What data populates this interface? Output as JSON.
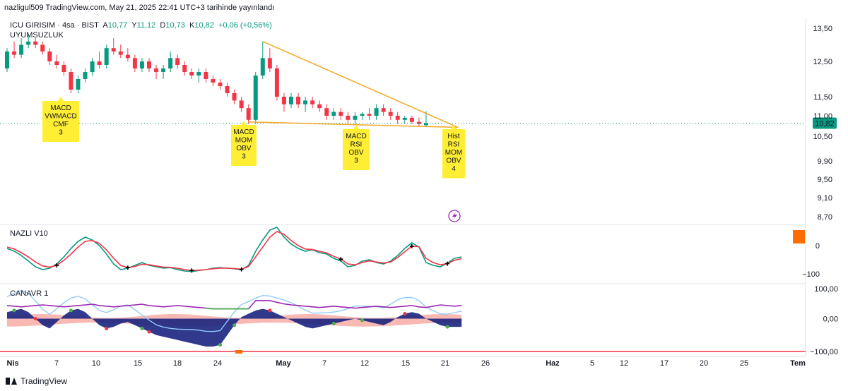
{
  "header": {
    "publish_line": "nazligul509 TradingView.com, May 21, 2025 22:41 UTC+3 tarihinde yayınlandı"
  },
  "legend": {
    "symbol": "ICU GIRISIM · 4sa · BIST",
    "open_label": "A",
    "open": "10,77",
    "high_label": "Y",
    "high": "11,12",
    "low_label": "D",
    "low": "10,73",
    "close_label": "K",
    "close": "10,82",
    "change": "+0,06 (+0,56%)",
    "study": "UYUMSUZLUK"
  },
  "colors": {
    "up": "#089981",
    "down": "#f23645",
    "trendline": "#f5a623",
    "annotation_bg": "#ffee33",
    "price_tag": "#089981",
    "orange_box": "#ff6d00",
    "purple": "#9c27b0",
    "nazli_green": "#089981",
    "nazli_red": "#f23645"
  },
  "chart_data": [
    {
      "type": "candlestick",
      "panel": "price",
      "x_axis": {
        "tick_labels": [
          "Nis",
          "7",
          "10",
          "15",
          "18",
          "24",
          "May",
          "7",
          "12",
          "15",
          "21",
          "26",
          "Haz",
          "5",
          "12",
          "17",
          "20",
          "25",
          "Tem"
        ],
        "bold_ticks": [
          "Nis",
          "May",
          "Haz",
          "Tem"
        ]
      },
      "y_axis": {
        "tick_labels": [
          "13,50",
          "12,50",
          "11,50",
          "11,00",
          "10,50",
          "9,90",
          "9,50",
          "9,10",
          "8,70"
        ],
        "ylim": [
          8.6,
          13.7
        ]
      },
      "last_price": "10,82",
      "candles": [
        [
          12.3,
          12.9,
          12.2,
          12.8
        ],
        [
          12.8,
          13.1,
          12.6,
          12.7
        ],
        [
          12.7,
          13.2,
          12.6,
          13.0
        ],
        [
          13.0,
          13.3,
          12.9,
          13.1
        ],
        [
          13.1,
          13.2,
          12.9,
          13.0
        ],
        [
          13.0,
          13.1,
          12.7,
          12.8
        ],
        [
          12.8,
          12.9,
          12.4,
          12.5
        ],
        [
          12.5,
          12.7,
          12.3,
          12.4
        ],
        [
          12.4,
          12.5,
          12.1,
          12.2
        ],
        [
          12.2,
          12.3,
          11.6,
          11.7
        ],
        [
          11.7,
          12.1,
          11.6,
          12.0
        ],
        [
          12.0,
          12.3,
          11.9,
          12.2
        ],
        [
          12.2,
          12.6,
          12.1,
          12.5
        ],
        [
          12.5,
          12.8,
          12.3,
          12.4
        ],
        [
          12.4,
          13.0,
          12.3,
          12.9
        ],
        [
          12.9,
          13.2,
          12.7,
          12.8
        ],
        [
          12.8,
          13.0,
          12.6,
          12.7
        ],
        [
          12.7,
          12.9,
          12.5,
          12.6
        ],
        [
          12.6,
          12.7,
          12.2,
          12.3
        ],
        [
          12.3,
          12.6,
          12.2,
          12.5
        ],
        [
          12.5,
          12.6,
          12.2,
          12.3
        ],
        [
          12.3,
          12.4,
          12.0,
          12.2
        ],
        [
          12.2,
          12.4,
          12.0,
          12.3
        ],
        [
          12.3,
          12.8,
          12.2,
          12.6
        ],
        [
          12.6,
          12.7,
          12.3,
          12.4
        ],
        [
          12.4,
          12.5,
          12.1,
          12.2
        ],
        [
          12.2,
          12.3,
          12.0,
          12.1
        ],
        [
          12.1,
          12.3,
          11.9,
          12.2
        ],
        [
          12.2,
          12.3,
          11.9,
          12.0
        ],
        [
          12.0,
          12.1,
          11.8,
          11.9
        ],
        [
          11.9,
          12.0,
          11.7,
          11.8
        ],
        [
          11.8,
          11.9,
          11.5,
          11.6
        ],
        [
          11.6,
          11.7,
          11.3,
          11.4
        ],
        [
          11.4,
          11.5,
          11.1,
          11.2
        ],
        [
          11.2,
          11.3,
          10.8,
          10.9
        ],
        [
          10.9,
          12.2,
          10.8,
          12.1
        ],
        [
          12.1,
          13.1,
          12.0,
          12.6
        ],
        [
          12.6,
          12.9,
          12.2,
          12.3
        ],
        [
          12.3,
          12.4,
          11.4,
          11.5
        ],
        [
          11.5,
          11.6,
          11.1,
          11.3
        ],
        [
          11.3,
          11.6,
          11.2,
          11.5
        ],
        [
          11.5,
          11.6,
          11.2,
          11.3
        ],
        [
          11.3,
          11.5,
          11.1,
          11.4
        ],
        [
          11.4,
          11.5,
          11.2,
          11.3
        ],
        [
          11.3,
          11.4,
          11.1,
          11.2
        ],
        [
          11.2,
          11.3,
          10.9,
          11.0
        ],
        [
          11.0,
          11.2,
          10.9,
          11.1
        ],
        [
          11.1,
          11.2,
          10.9,
          11.0
        ],
        [
          11.0,
          11.1,
          10.8,
          10.9
        ],
        [
          10.9,
          11.1,
          10.8,
          11.0
        ],
        [
          11.0,
          11.1,
          10.9,
          11.05
        ],
        [
          11.05,
          11.2,
          10.9,
          11.0
        ],
        [
          11.0,
          11.3,
          10.9,
          11.2
        ],
        [
          11.2,
          11.3,
          11.0,
          11.1
        ],
        [
          11.1,
          11.2,
          10.9,
          11.0
        ],
        [
          11.0,
          11.1,
          10.8,
          10.9
        ],
        [
          10.9,
          11.0,
          10.8,
          10.95
        ],
        [
          10.95,
          11.0,
          10.8,
          10.85
        ],
        [
          10.85,
          10.95,
          10.75,
          10.8
        ],
        [
          10.77,
          11.12,
          10.73,
          10.82
        ]
      ],
      "annotations": [
        {
          "text": [
            "MACD",
            "VWMACD",
            "CMF",
            "3"
          ]
        },
        {
          "text": [
            "MACD",
            "MOM",
            "OBV",
            "3"
          ]
        },
        {
          "text": [
            "MACD",
            "RSI",
            "OBV",
            "3"
          ]
        },
        {
          "text": [
            "Hist",
            "RSI",
            "MOM",
            "OBV",
            "4"
          ]
        }
      ],
      "trendline_upper": [
        [
          36,
          13.1
        ],
        [
          62,
          10.75
        ]
      ],
      "trendline_lower": [
        [
          34,
          10.85
        ],
        [
          62,
          10.75
        ]
      ]
    },
    {
      "type": "line",
      "panel": "nazli",
      "title": "NAZLI V10",
      "y_axis": {
        "tick_labels": [
          "0",
          "−100"
        ],
        "ylim": [
          -130,
          70
        ]
      },
      "series": [
        {
          "name": "",
          "color": "#089981",
          "values": [
            -10,
            -20,
            -35,
            -55,
            -75,
            -85,
            -80,
            -65,
            -40,
            -10,
            15,
            30,
            20,
            0,
            -30,
            -65,
            -85,
            -80,
            -70,
            -60,
            -70,
            -75,
            -80,
            -78,
            -85,
            -90,
            -92,
            -88,
            -85,
            -80,
            -78,
            -80,
            -82,
            -86,
            -70,
            -20,
            20,
            55,
            65,
            30,
            5,
            -10,
            -20,
            -15,
            -25,
            -30,
            -45,
            -55,
            -75,
            -70,
            -55,
            -50,
            -60,
            -65,
            -55,
            -35,
            -10,
            10,
            -5,
            -60,
            -70,
            -75,
            -62,
            -45,
            -40
          ]
        },
        {
          "name": "",
          "color": "#f23645",
          "values": [
            -5,
            -12,
            -25,
            -40,
            -58,
            -72,
            -76,
            -70,
            -52,
            -30,
            -5,
            15,
            18,
            8,
            -15,
            -45,
            -70,
            -78,
            -74,
            -66,
            -68,
            -72,
            -76,
            -77,
            -80,
            -85,
            -88,
            -87,
            -85,
            -82,
            -80,
            -80,
            -81,
            -84,
            -74,
            -40,
            -5,
            30,
            50,
            40,
            18,
            0,
            -12,
            -14,
            -20,
            -26,
            -38,
            -48,
            -65,
            -68,
            -60,
            -54,
            -58,
            -62,
            -58,
            -42,
            -22,
            -2,
            -4,
            -45,
            -60,
            -68,
            -64,
            -52,
            -46
          ]
        }
      ],
      "markers_at": [
        7,
        17,
        26,
        33,
        47,
        57,
        62
      ]
    },
    {
      "type": "area",
      "panel": "canavar",
      "title": "CANAVR 1",
      "y_axis": {
        "tick_labels": [
          "100,00",
          "0,00",
          "−100,00"
        ],
        "ylim": [
          -100,
          100
        ]
      },
      "series": [
        {
          "name": "",
          "color": "#9c27b0",
          "values": [
            40,
            38,
            36,
            38,
            40,
            42,
            40,
            38,
            36,
            38,
            40,
            42,
            44,
            40,
            38,
            36,
            38,
            40,
            42,
            44,
            40,
            38,
            36,
            38,
            40,
            38,
            36,
            34,
            32,
            30,
            30,
            30,
            30,
            30,
            30,
            55,
            55,
            55,
            50,
            45,
            42,
            40,
            38,
            36,
            34,
            36,
            38,
            36,
            34,
            32,
            34,
            36,
            38,
            36,
            34,
            36,
            38,
            40,
            36,
            34,
            38,
            42,
            40,
            38,
            40
          ]
        },
        {
          "name": "",
          "color": "#1a237e",
          "values": [
            20,
            25,
            30,
            20,
            0,
            -20,
            -30,
            -10,
            10,
            25,
            30,
            20,
            0,
            -20,
            -30,
            -25,
            -15,
            -10,
            -20,
            -30,
            -40,
            -50,
            -55,
            -60,
            -65,
            -70,
            -75,
            -80,
            -85,
            -85,
            -80,
            -50,
            -20,
            5,
            15,
            25,
            30,
            25,
            15,
            5,
            -5,
            -15,
            -25,
            -30,
            -25,
            -20,
            -15,
            -10,
            -5,
            0,
            -5,
            -10,
            -15,
            -20,
            -10,
            5,
            15,
            20,
            15,
            0,
            -10,
            -20,
            -25,
            -25,
            -25
          ]
        }
      ]
    }
  ]
}
